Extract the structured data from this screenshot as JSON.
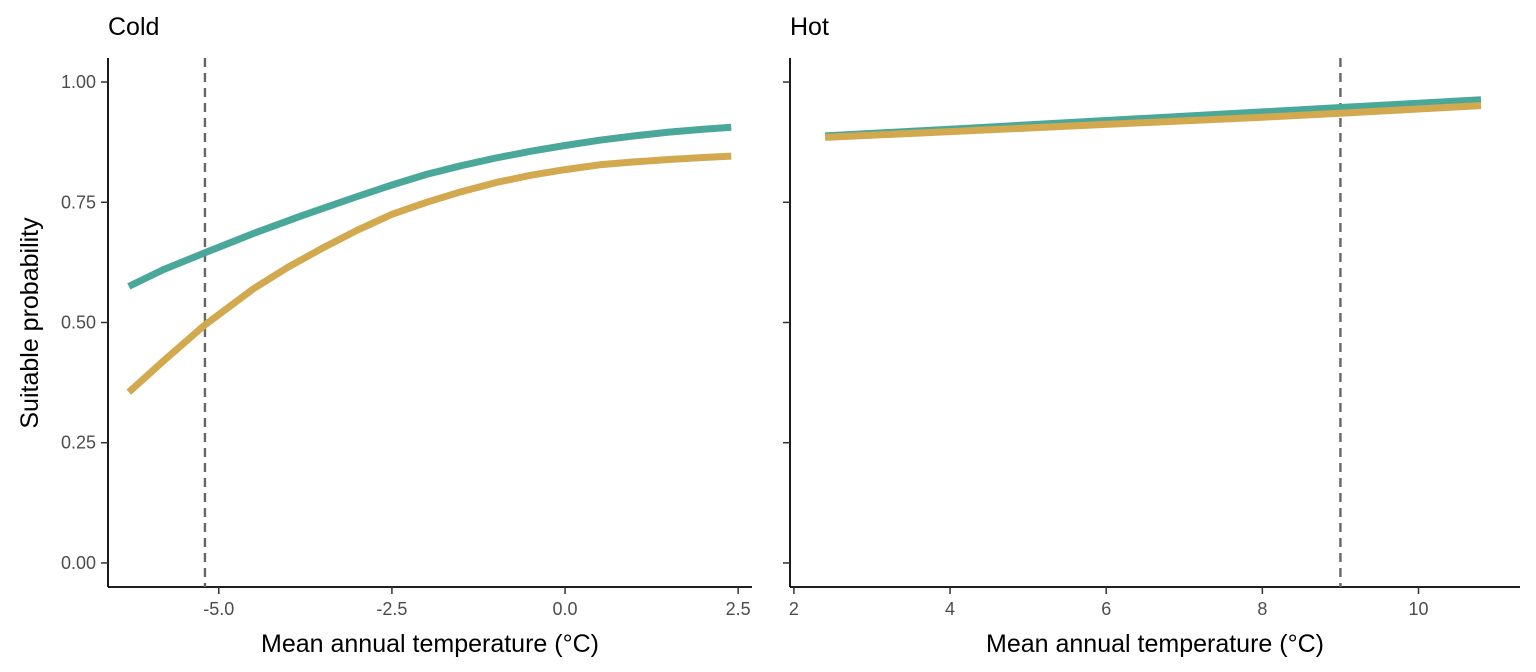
{
  "chart_data": [
    {
      "type": "line",
      "title": "Cold",
      "xlabel": "Mean annual temperature (°C)",
      "ylabel": "Suitable probability",
      "xlim": [
        -6.6,
        2.7
      ],
      "ylim": [
        -0.05,
        1.05
      ],
      "x_ticks": [
        -5.0,
        -2.5,
        0.0,
        2.5
      ],
      "x_tick_labels": [
        "-5.0",
        "-2.5",
        "0.0",
        "2.5"
      ],
      "y_ticks": [
        0.0,
        0.25,
        0.5,
        0.75,
        1.0
      ],
      "y_tick_labels": [
        "0.00",
        "0.25",
        "0.50",
        "0.75",
        "1.00"
      ],
      "vline_x": -5.2,
      "grid": false,
      "series": [
        {
          "color": "#4aa89a",
          "x": [
            -6.3,
            -5.8,
            -5.2,
            -4.5,
            -3.8,
            -3.0,
            -2.5,
            -2.0,
            -1.5,
            -1.0,
            -0.5,
            0.0,
            0.5,
            1.0,
            1.5,
            2.0,
            2.4
          ],
          "y": [
            0.575,
            0.61,
            0.645,
            0.685,
            0.722,
            0.762,
            0.786,
            0.808,
            0.826,
            0.842,
            0.856,
            0.868,
            0.879,
            0.888,
            0.896,
            0.902,
            0.906
          ]
        },
        {
          "color": "#d2a94f",
          "x": [
            -6.3,
            -5.8,
            -5.2,
            -4.5,
            -4.0,
            -3.5,
            -3.0,
            -2.5,
            -2.0,
            -1.5,
            -1.0,
            -0.5,
            0.0,
            0.5,
            1.0,
            1.5,
            2.0,
            2.4
          ],
          "y": [
            0.355,
            0.42,
            0.495,
            0.57,
            0.615,
            0.655,
            0.692,
            0.725,
            0.75,
            0.772,
            0.791,
            0.806,
            0.818,
            0.828,
            0.834,
            0.839,
            0.843,
            0.846
          ]
        }
      ]
    },
    {
      "type": "line",
      "title": "Hot",
      "xlabel": "Mean annual temperature (°C)",
      "ylabel": "",
      "xlim": [
        1.95,
        11.3
      ],
      "ylim": [
        -0.05,
        1.05
      ],
      "x_ticks": [
        2,
        4,
        6,
        8,
        10
      ],
      "x_tick_labels": [
        "2",
        "4",
        "6",
        "8",
        "10"
      ],
      "y_ticks": [
        0.0,
        0.25,
        0.5,
        0.75,
        1.0
      ],
      "y_tick_labels": [],
      "vline_x": 9.0,
      "grid": false,
      "series": [
        {
          "color": "#4aa89a",
          "x": [
            2.4,
            4.0,
            6.0,
            8.0,
            9.0,
            10.0,
            10.8
          ],
          "y": [
            0.888,
            0.902,
            0.92,
            0.938,
            0.947,
            0.956,
            0.963
          ]
        },
        {
          "color": "#d2a94f",
          "x": [
            2.4,
            4.0,
            6.0,
            8.0,
            9.0,
            10.0,
            10.8
          ],
          "y": [
            0.885,
            0.897,
            0.912,
            0.927,
            0.935,
            0.944,
            0.951
          ]
        }
      ]
    }
  ]
}
